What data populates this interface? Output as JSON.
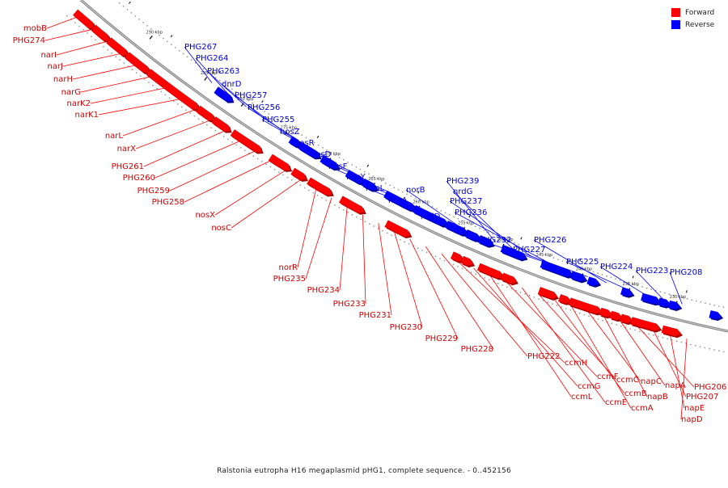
{
  "legend": {
    "forward_label": "Forward",
    "reverse_label": "Reverse",
    "forward_color": "#ff0000",
    "reverse_color": "#0000ff"
  },
  "caption": "Ralstonia eutropha H16 megaplasmid pHG1, complete sequence. - 0..452156",
  "ticks": [
    "290 kbp",
    "285 kbp",
    "280 kbp",
    "275 kbp",
    "270 kbp",
    "265 kbp",
    "260 kbp",
    "255 kbp",
    "250 kbp",
    "245 kbp",
    "240 kbp",
    "235 kbp",
    "230 kbp"
  ],
  "forward_genes": [
    "mobB",
    "PHG274",
    "narI",
    "narJ",
    "narH",
    "narG",
    "narK2",
    "narK1",
    "narL",
    "narX",
    "PHG261",
    "PHG260",
    "PHG259",
    "PHG258",
    "nosX",
    "nosC",
    "norR",
    "PHG235",
    "PHG234",
    "PHG233",
    "PHG231",
    "PHG230",
    "PHG229",
    "PHG228",
    "PHG222",
    "ccmH",
    "ccmG",
    "ccmL",
    "ccmF",
    "ccmE",
    "ccmC",
    "ccmB",
    "ccmA",
    "napC",
    "napB",
    "napA",
    "PHG206",
    "PHG207",
    "napE",
    "napD"
  ],
  "reverse_genes": [
    "PHG267",
    "PHG264",
    "PHG263",
    "dnrD",
    "PHG257",
    "PHG256",
    "PHG255",
    "nosZ",
    "nosR",
    "nosD",
    "nosF",
    "nosY",
    "nosL",
    "norA",
    "norB",
    "nrdD",
    "PHG239",
    "nrdG",
    "PHG237",
    "PHG236",
    "PHG232",
    "PHG227",
    "PHG226",
    "PHG225",
    "PHG224",
    "PHG223",
    "PHG208"
  ]
}
